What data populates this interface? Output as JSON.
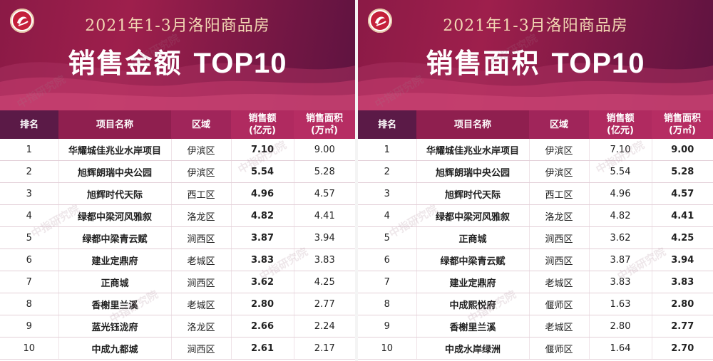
{
  "panels": [
    {
      "subtitle": "2021年1-3月洛阳商品房",
      "title_cn": "销售金额",
      "title_en": "TOP10",
      "watermark": "中指研究院",
      "headers": {
        "rank": "排名",
        "name": "项目名称",
        "area": "区域",
        "sales_l1": "销售额",
        "sales_l2": "(亿元)",
        "size_l1": "销售面积",
        "size_l2": "(万㎡)"
      },
      "highlight_column": "sales",
      "rows": [
        {
          "rank": "1",
          "name": "华耀城佳兆业水岸项目",
          "area": "伊滨区",
          "sales": "7.10",
          "size": "9.00"
        },
        {
          "rank": "2",
          "name": "旭辉朗瑞中央公园",
          "area": "伊滨区",
          "sales": "5.54",
          "size": "5.28"
        },
        {
          "rank": "3",
          "name": "旭辉时代天际",
          "area": "西工区",
          "sales": "4.96",
          "size": "4.57"
        },
        {
          "rank": "4",
          "name": "绿都中梁河风雅叙",
          "area": "洛龙区",
          "sales": "4.82",
          "size": "4.41"
        },
        {
          "rank": "5",
          "name": "绿都中梁青云赋",
          "area": "涧西区",
          "sales": "3.87",
          "size": "3.94"
        },
        {
          "rank": "6",
          "name": "建业定鼎府",
          "area": "老城区",
          "sales": "3.83",
          "size": "3.83"
        },
        {
          "rank": "7",
          "name": "正商城",
          "area": "涧西区",
          "sales": "3.62",
          "size": "4.25"
        },
        {
          "rank": "8",
          "name": "香榭里兰溪",
          "area": "老城区",
          "sales": "2.80",
          "size": "2.77"
        },
        {
          "rank": "9",
          "name": "蓝光钰泷府",
          "area": "洛龙区",
          "sales": "2.66",
          "size": "2.24"
        },
        {
          "rank": "10",
          "name": "中成九都城",
          "area": "涧西区",
          "sales": "2.61",
          "size": "2.17"
        }
      ]
    },
    {
      "subtitle": "2021年1-3月洛阳商品房",
      "title_cn": "销售面积",
      "title_en": "TOP10",
      "watermark": "中指研究院",
      "headers": {
        "rank": "排名",
        "name": "项目名称",
        "area": "区域",
        "sales_l1": "销售额",
        "sales_l2": "(亿元)",
        "size_l1": "销售面积",
        "size_l2": "(万㎡)"
      },
      "highlight_column": "size",
      "rows": [
        {
          "rank": "1",
          "name": "华耀城佳兆业水岸项目",
          "area": "伊滨区",
          "sales": "7.10",
          "size": "9.00"
        },
        {
          "rank": "2",
          "name": "旭辉朗瑞中央公园",
          "area": "伊滨区",
          "sales": "5.54",
          "size": "5.28"
        },
        {
          "rank": "3",
          "name": "旭辉时代天际",
          "area": "西工区",
          "sales": "4.96",
          "size": "4.57"
        },
        {
          "rank": "4",
          "name": "绿都中梁河风雅叙",
          "area": "洛龙区",
          "sales": "4.82",
          "size": "4.41"
        },
        {
          "rank": "5",
          "name": "正商城",
          "area": "涧西区",
          "sales": "3.62",
          "size": "4.25"
        },
        {
          "rank": "6",
          "name": "绿都中梁青云赋",
          "area": "涧西区",
          "sales": "3.87",
          "size": "3.94"
        },
        {
          "rank": "7",
          "name": "建业定鼎府",
          "area": "老城区",
          "sales": "3.83",
          "size": "3.83"
        },
        {
          "rank": "8",
          "name": "中成熙悦府",
          "area": "偃师区",
          "sales": "1.63",
          "size": "2.80"
        },
        {
          "rank": "9",
          "name": "香榭里兰溪",
          "area": "老城区",
          "sales": "2.80",
          "size": "2.77"
        },
        {
          "rank": "10",
          "name": "中成水岸绿洲",
          "area": "偃师区",
          "sales": "1.64",
          "size": "2.70"
        }
      ]
    }
  ],
  "colors": {
    "banner": "#8b1a46",
    "highlight": "#b01c58",
    "subtitle": "#f2d7b3"
  }
}
